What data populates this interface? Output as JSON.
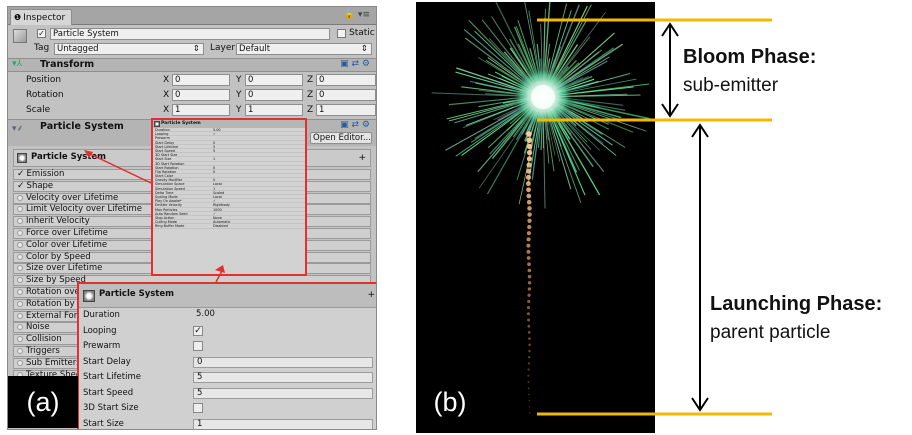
{
  "panel_a": {
    "label": "(a)",
    "tab_title": "Inspector",
    "object": {
      "name": "Particle System",
      "static_label": "Static",
      "tag_label": "Tag",
      "tag_value": "Untagged",
      "layer_label": "Layer",
      "layer_value": "Default"
    },
    "transform": {
      "title": "Transform",
      "rows": [
        {
          "label": "Position",
          "x": "0",
          "y": "0",
          "z": "0"
        },
        {
          "label": "Rotation",
          "x": "0",
          "y": "0",
          "z": "0"
        },
        {
          "label": "Scale",
          "x": "1",
          "y": "1",
          "z": "1"
        }
      ],
      "axis_x": "X",
      "axis_y": "Y",
      "axis_z": "Z"
    },
    "particle_system": {
      "title": "Particle System",
      "open_editor": "Open Editor...",
      "main_module": "Particle System"
    },
    "modules": [
      {
        "label": "Emission",
        "checked": true
      },
      {
        "label": "Shape",
        "checked": true
      },
      {
        "label": "Velocity over Lifetime",
        "checked": false
      },
      {
        "label": "Limit Velocity over Lifetime",
        "checked": false
      },
      {
        "label": "Inherit Velocity",
        "checked": false
      },
      {
        "label": "Force over Lifetime",
        "checked": false
      },
      {
        "label": "Color over Lifetime",
        "checked": false
      },
      {
        "label": "Color by Speed",
        "checked": false
      },
      {
        "label": "Size over Lifetime",
        "checked": false
      },
      {
        "label": "Size by Speed",
        "checked": false
      },
      {
        "label": "Rotation over L",
        "checked": false
      },
      {
        "label": "Rotation by Spe",
        "checked": false
      },
      {
        "label": "External Forces",
        "checked": false
      },
      {
        "label": "Noise",
        "checked": false
      },
      {
        "label": "Collision",
        "checked": false
      },
      {
        "label": "Triggers",
        "checked": false
      },
      {
        "label": "Sub Emitters",
        "checked": false
      },
      {
        "label": "Texture Sheet",
        "checked": false
      }
    ],
    "zoom_small": {
      "title": "Particle System",
      "rows": [
        {
          "label": "Duration",
          "value": "5.00"
        },
        {
          "label": "Looping",
          "value": "✓"
        },
        {
          "label": "Prewarm",
          "value": ""
        },
        {
          "label": "Start Delay",
          "value": "0"
        },
        {
          "label": "Start Lifetime",
          "value": "5"
        },
        {
          "label": "Start Speed",
          "value": "5"
        },
        {
          "label": "3D Start Size",
          "value": ""
        },
        {
          "label": "Start Size",
          "value": "1"
        },
        {
          "label": "3D Start Rotation",
          "value": ""
        },
        {
          "label": "Start Rotation",
          "value": "0"
        },
        {
          "label": "Flip Rotation",
          "value": "0"
        },
        {
          "label": "Start Color",
          "value": ""
        },
        {
          "label": "Gravity Modifier",
          "value": "0"
        },
        {
          "label": "Simulation Space",
          "value": "Local"
        },
        {
          "label": "Simulation Speed",
          "value": "1"
        },
        {
          "label": "Delta Time",
          "value": "Scaled"
        },
        {
          "label": "Scaling Mode",
          "value": "Local"
        },
        {
          "label": "Play On Awake*",
          "value": "✓"
        },
        {
          "label": "Emitter Velocity",
          "value": "Rigidbody"
        },
        {
          "label": "Max Particles",
          "value": "1000"
        },
        {
          "label": "Auto Random Seed",
          "value": "✓"
        },
        {
          "label": "Stop Action",
          "value": "None"
        },
        {
          "label": "Culling Mode",
          "value": "Automatic"
        },
        {
          "label": "Ring Buffer Mode",
          "value": "Disabled"
        }
      ]
    },
    "zoom_large": {
      "title": "Particle System",
      "rows": [
        {
          "label": "Duration",
          "value": "5.00"
        },
        {
          "label": "Looping",
          "value": "✓"
        },
        {
          "label": "Prewarm",
          "value": ""
        },
        {
          "label": "Start Delay",
          "value": "0"
        },
        {
          "label": "Start Lifetime",
          "value": "5"
        },
        {
          "label": "Start Speed",
          "value": "5"
        },
        {
          "label": "3D Start Size",
          "value": ""
        },
        {
          "label": "Start Size",
          "value": "1"
        }
      ]
    }
  },
  "panel_b": {
    "label": "(b)",
    "bloom": {
      "title": "Bloom Phase:",
      "subtitle": "sub-emitter"
    },
    "launch": {
      "title": "Launching Phase:",
      "subtitle": "parent particle"
    },
    "marker_color": "#f5b800"
  }
}
